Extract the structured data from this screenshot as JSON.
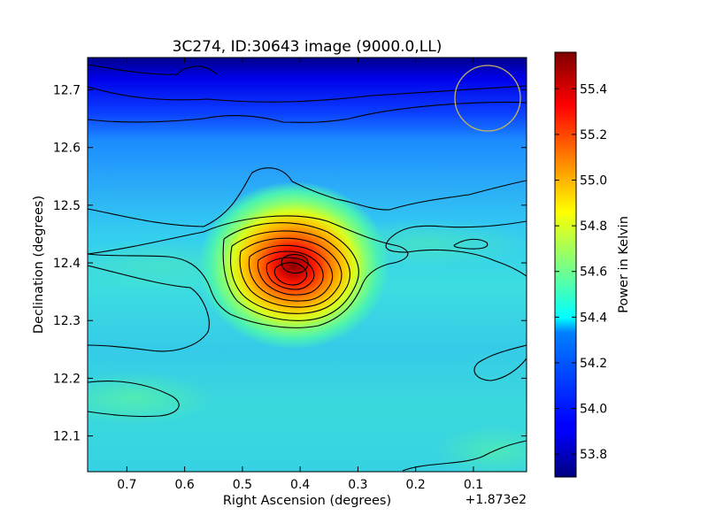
{
  "chart_data": {
    "type": "heatmap",
    "title": "3C274, ID:30643 image (9000.0,LL)",
    "xlabel": "Right Ascension (degrees)",
    "ylabel": "Declination (degrees)",
    "x_offset_label": "+1.873e2",
    "x_ticks": [
      "0.7",
      "0.6",
      "0.5",
      "0.4",
      "0.3",
      "0.2",
      "0.1"
    ],
    "x_tick_values": [
      0.7,
      0.6,
      0.5,
      0.4,
      0.3,
      0.2,
      0.1
    ],
    "xlim": [
      0.768,
      0.008
    ],
    "y_ticks": [
      "12.1",
      "12.2",
      "12.3",
      "12.4",
      "12.5",
      "12.6",
      "12.7"
    ],
    "y_tick_values": [
      12.1,
      12.2,
      12.3,
      12.4,
      12.5,
      12.6,
      12.7
    ],
    "ylim": [
      12.038,
      12.756
    ],
    "colorbar": {
      "label": "Power in Kelvin",
      "ticks": [
        "53.8",
        "54.0",
        "54.2",
        "54.4",
        "54.6",
        "54.8",
        "55.0",
        "55.2",
        "55.4"
      ],
      "tick_values": [
        53.8,
        54.0,
        54.2,
        54.4,
        54.6,
        54.8,
        55.0,
        55.2,
        55.4
      ],
      "range": [
        53.7,
        55.56
      ],
      "colormap": "jet"
    },
    "peak": {
      "ra_offset": 0.41,
      "dec": 12.395,
      "value": 55.55
    },
    "background_level": 54.35,
    "beam_circle": {
      "ra_offset": 0.078,
      "dec": 12.685,
      "color": "#c8b45a"
    },
    "contour_color": "#000000",
    "grid": false
  }
}
